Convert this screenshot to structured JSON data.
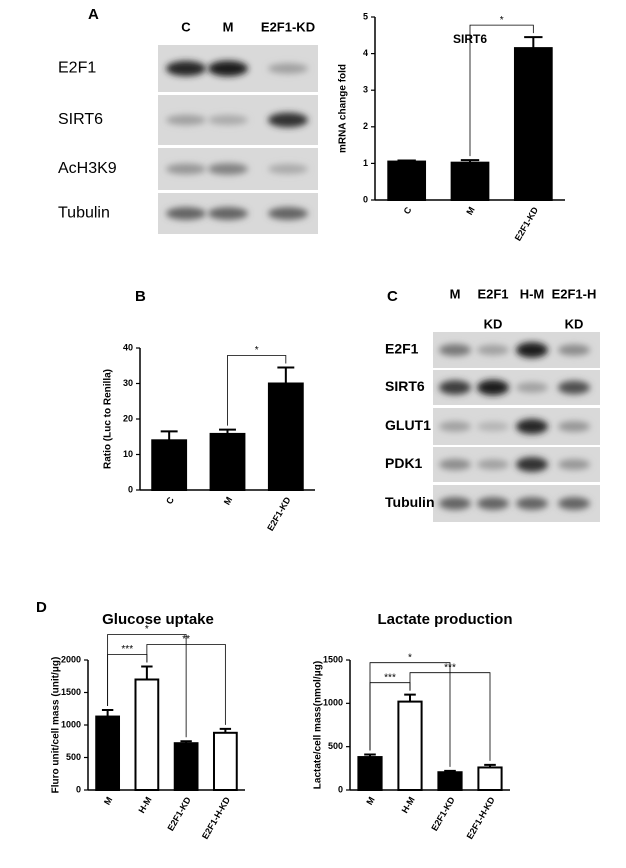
{
  "panel_letters": [
    "A",
    "B",
    "C",
    "D"
  ],
  "blot_a": {
    "lanes": [
      "C",
      "M",
      "E2F1-KD"
    ],
    "rows": [
      "E2F1",
      "SIRT6",
      "AcH3K9",
      "Tubulin"
    ]
  },
  "blot_c": {
    "lanes": [
      {
        "label": "M"
      },
      {
        "label": "E2F1",
        "sub": "KD"
      },
      {
        "label": "H-M"
      },
      {
        "label": "E2F1-H",
        "sub": "KD"
      }
    ],
    "rows": [
      "E2F1",
      "SIRT6",
      "GLUT1",
      "PDK1",
      "Tubulin"
    ]
  },
  "chart_data": [
    {
      "type": "bar",
      "title": "SIRT6",
      "y_label": "mRNA change fold",
      "categories": [
        "C",
        "M",
        "E2F1-KD"
      ],
      "values": [
        1.05,
        1.02,
        4.15
      ],
      "errors": [
        0.03,
        0.07,
        0.3
      ],
      "colors": [
        "#000000",
        "#000000",
        "#000000"
      ],
      "ylim": [
        0,
        5
      ],
      "yticks": [
        0,
        1,
        2,
        3,
        4,
        5
      ],
      "comparisons": [
        {
          "from": "M",
          "to": "E2F1-KD",
          "label": "*"
        }
      ]
    },
    {
      "type": "bar",
      "y_label": "Ratio (Luc to Renilla)",
      "categories": [
        "C",
        "M",
        "E2F1-KD"
      ],
      "values": [
        14,
        15.8,
        30
      ],
      "errors": [
        2.5,
        1.2,
        4.5
      ],
      "colors": [
        "#000000",
        "#000000",
        "#000000"
      ],
      "ylim": [
        0,
        40
      ],
      "yticks": [
        0,
        10,
        20,
        30,
        40
      ],
      "comparisons": [
        {
          "from": "M",
          "to": "E2F1-KD",
          "label": "*"
        }
      ]
    },
    {
      "type": "bar",
      "title": "Glucose uptake",
      "y_label": "Fluro unit/cell mass (unit/μg)",
      "categories": [
        "M",
        "H-M",
        "E2F1-KD",
        "E2F1-H-KD"
      ],
      "values": [
        1130,
        1700,
        720,
        880
      ],
      "errors": [
        100,
        200,
        30,
        60
      ],
      "colors": [
        "#000000",
        "#ffffff",
        "#000000",
        "#ffffff"
      ],
      "ylim": [
        0,
        2000
      ],
      "yticks": [
        0,
        500,
        1000,
        1500,
        2000
      ],
      "comparisons": [
        {
          "from": "M",
          "to": "H-M",
          "label": "***"
        },
        {
          "from": "H-M",
          "to": "E2F1-H-KD",
          "label": "**"
        },
        {
          "from": "M",
          "to": "E2F1-KD",
          "label": "*"
        }
      ]
    },
    {
      "type": "bar",
      "title": "Lactate production",
      "y_label": "Lactate/cell mass(nmol/μg)",
      "categories": [
        "M",
        "H-M",
        "E2F1-KD",
        "E2F1-H-KD"
      ],
      "values": [
        380,
        1020,
        205,
        260
      ],
      "errors": [
        30,
        80,
        15,
        30
      ],
      "colors": [
        "#000000",
        "#ffffff",
        "#000000",
        "#ffffff"
      ],
      "ylim": [
        0,
        1500
      ],
      "yticks": [
        0,
        500,
        1000,
        1500
      ],
      "comparisons": [
        {
          "from": "M",
          "to": "H-M",
          "label": "***"
        },
        {
          "from": "H-M",
          "to": "E2F1-H-KD",
          "label": "***"
        },
        {
          "from": "M",
          "to": "E2F1-KD",
          "label": "*"
        }
      ]
    }
  ]
}
